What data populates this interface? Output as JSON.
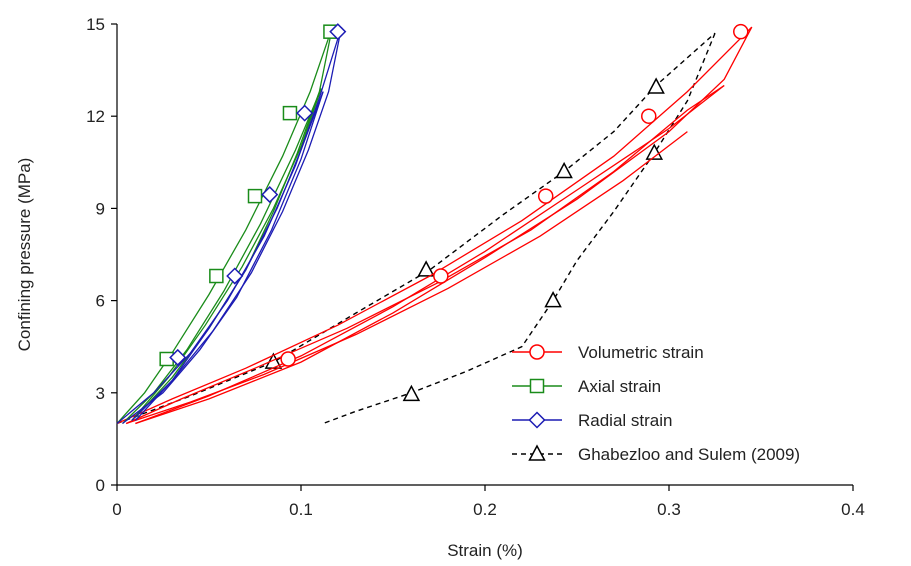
{
  "chart_data": {
    "type": "line",
    "xlabel": "Strain (%)",
    "ylabel": "Confining pressure (MPa)",
    "xlim": [
      0,
      0.4
    ],
    "ylim": [
      0,
      15
    ],
    "xticks": [
      "0",
      "0.1",
      "0.2",
      "0.3",
      "0.4"
    ],
    "yticks": [
      "0",
      "3",
      "6",
      "9",
      "12",
      "15"
    ],
    "legend_position": "bottom-right",
    "series": [
      {
        "name": "Volumetric strain",
        "color": "#ff0000",
        "marker": "circle",
        "line": "solid",
        "cycles": [
          {
            "x": [
              0.0,
              0.03,
              0.07,
              0.12,
              0.17,
              0.22,
              0.27,
              0.31,
              0.345
            ],
            "y": [
              2.0,
              2.8,
              3.8,
              5.2,
              6.8,
              8.6,
              10.7,
              12.8,
              14.9
            ]
          },
          {
            "x": [
              0.345,
              0.33,
              0.3,
              0.25,
              0.2,
              0.15,
              0.1,
              0.05,
              0.01
            ],
            "y": [
              14.9,
              13.2,
              11.5,
              9.3,
              7.4,
              5.6,
              4.0,
              2.8,
              2.0
            ]
          },
          {
            "x": [
              0.005,
              0.035,
              0.075,
              0.125,
              0.175,
              0.225,
              0.27,
              0.31,
              0.33
            ],
            "y": [
              2.0,
              2.8,
              3.8,
              5.1,
              6.6,
              8.3,
              10.2,
              12.2,
              13.0
            ]
          },
          {
            "x": [
              0.33,
              0.3,
              0.25,
              0.2,
              0.15,
              0.1,
              0.05,
              0.01
            ],
            "y": [
              13.0,
              11.6,
              9.6,
              7.6,
              5.8,
              4.2,
              2.9,
              2.0
            ]
          },
          {
            "x": [
              0.005,
              0.04,
              0.08,
              0.13,
              0.18,
              0.23,
              0.275,
              0.31
            ],
            "y": [
              2.0,
              2.7,
              3.6,
              4.9,
              6.4,
              8.1,
              9.9,
              11.5
            ]
          }
        ],
        "markers": {
          "x": [
            0.093,
            0.176,
            0.233,
            0.289,
            0.339
          ],
          "y": [
            4.1,
            6.8,
            9.4,
            12.0,
            14.75
          ]
        }
      },
      {
        "name": "Axial strain",
        "color": "#1a8c1a",
        "marker": "square",
        "line": "solid",
        "cycles": [
          {
            "x": [
              0.0,
              0.015,
              0.03,
              0.05,
              0.07,
              0.09,
              0.105,
              0.117
            ],
            "y": [
              2.0,
              3.0,
              4.3,
              6.2,
              8.3,
              10.7,
              12.8,
              14.9
            ]
          },
          {
            "x": [
              0.117,
              0.11,
              0.098,
              0.085,
              0.07,
              0.05,
              0.03,
              0.01
            ],
            "y": [
              14.9,
              12.8,
              10.8,
              8.9,
              7.0,
              5.1,
              3.5,
              2.2
            ]
          },
          {
            "x": [
              0.003,
              0.02,
              0.038,
              0.058,
              0.078,
              0.097,
              0.111
            ],
            "y": [
              2.0,
              3.0,
              4.4,
              6.3,
              8.5,
              10.9,
              12.9
            ]
          },
          {
            "x": [
              0.111,
              0.1,
              0.085,
              0.068,
              0.048,
              0.028,
              0.008
            ],
            "y": [
              12.9,
              11.0,
              9.0,
              7.1,
              5.2,
              3.5,
              2.1
            ]
          }
        ],
        "markers": {
          "x": [
            0.027,
            0.054,
            0.075,
            0.094,
            0.116
          ],
          "y": [
            4.1,
            6.8,
            9.4,
            12.1,
            14.75
          ]
        }
      },
      {
        "name": "Radial strain",
        "color": "#1c1cb4",
        "marker": "diamond",
        "line": "solid",
        "cycles": [
          {
            "x": [
              0.0,
              0.02,
              0.04,
              0.06,
              0.08,
              0.097,
              0.11,
              0.122
            ],
            "y": [
              2.0,
              3.0,
              4.3,
              6.0,
              8.1,
              10.4,
              12.6,
              14.9
            ]
          },
          {
            "x": [
              0.122,
              0.115,
              0.104,
              0.09,
              0.073,
              0.052,
              0.03,
              0.01
            ],
            "y": [
              14.9,
              12.8,
              10.9,
              8.9,
              6.9,
              5.0,
              3.4,
              2.1
            ]
          },
          {
            "x": [
              0.003,
              0.025,
              0.045,
              0.065,
              0.084,
              0.1,
              0.112
            ],
            "y": [
              2.0,
              3.0,
              4.4,
              6.1,
              8.3,
              10.6,
              12.8
            ]
          },
          {
            "x": [
              0.112,
              0.1,
              0.087,
              0.07,
              0.05,
              0.03,
              0.008
            ],
            "y": [
              12.8,
              10.9,
              9.0,
              7.0,
              5.1,
              3.4,
              2.1
            ]
          }
        ],
        "markers": {
          "x": [
            0.033,
            0.064,
            0.083,
            0.102,
            0.12
          ],
          "y": [
            4.15,
            6.8,
            9.45,
            12.1,
            14.75
          ]
        }
      },
      {
        "name": "Ghabezloo and Sulem (2009)",
        "color": "#000000",
        "marker": "triangle",
        "line": "dashed",
        "cycles": [
          {
            "x": [
              0.0,
              0.04,
              0.085,
              0.13,
              0.17,
              0.21,
              0.243,
              0.27,
              0.293,
              0.325
            ],
            "y": [
              2.0,
              2.9,
              4.0,
              5.6,
              7.0,
              8.8,
              10.2,
              11.5,
              13.0,
              14.7
            ]
          },
          {
            "x": [
              0.325,
              0.31,
              0.292,
              0.27,
              0.25,
              0.237,
              0.22,
              0.19,
              0.16,
              0.13,
              0.112
            ],
            "y": [
              14.7,
              12.5,
              10.8,
              8.9,
              7.3,
              6.0,
              4.5,
              3.7,
              3.0,
              2.4,
              2.0
            ]
          }
        ],
        "markers": {
          "x": [
            0.085,
            0.168,
            0.243,
            0.293,
            0.292,
            0.237,
            0.16
          ],
          "y": [
            4.0,
            7.0,
            10.2,
            12.95,
            10.8,
            6.0,
            2.95
          ]
        }
      }
    ]
  }
}
